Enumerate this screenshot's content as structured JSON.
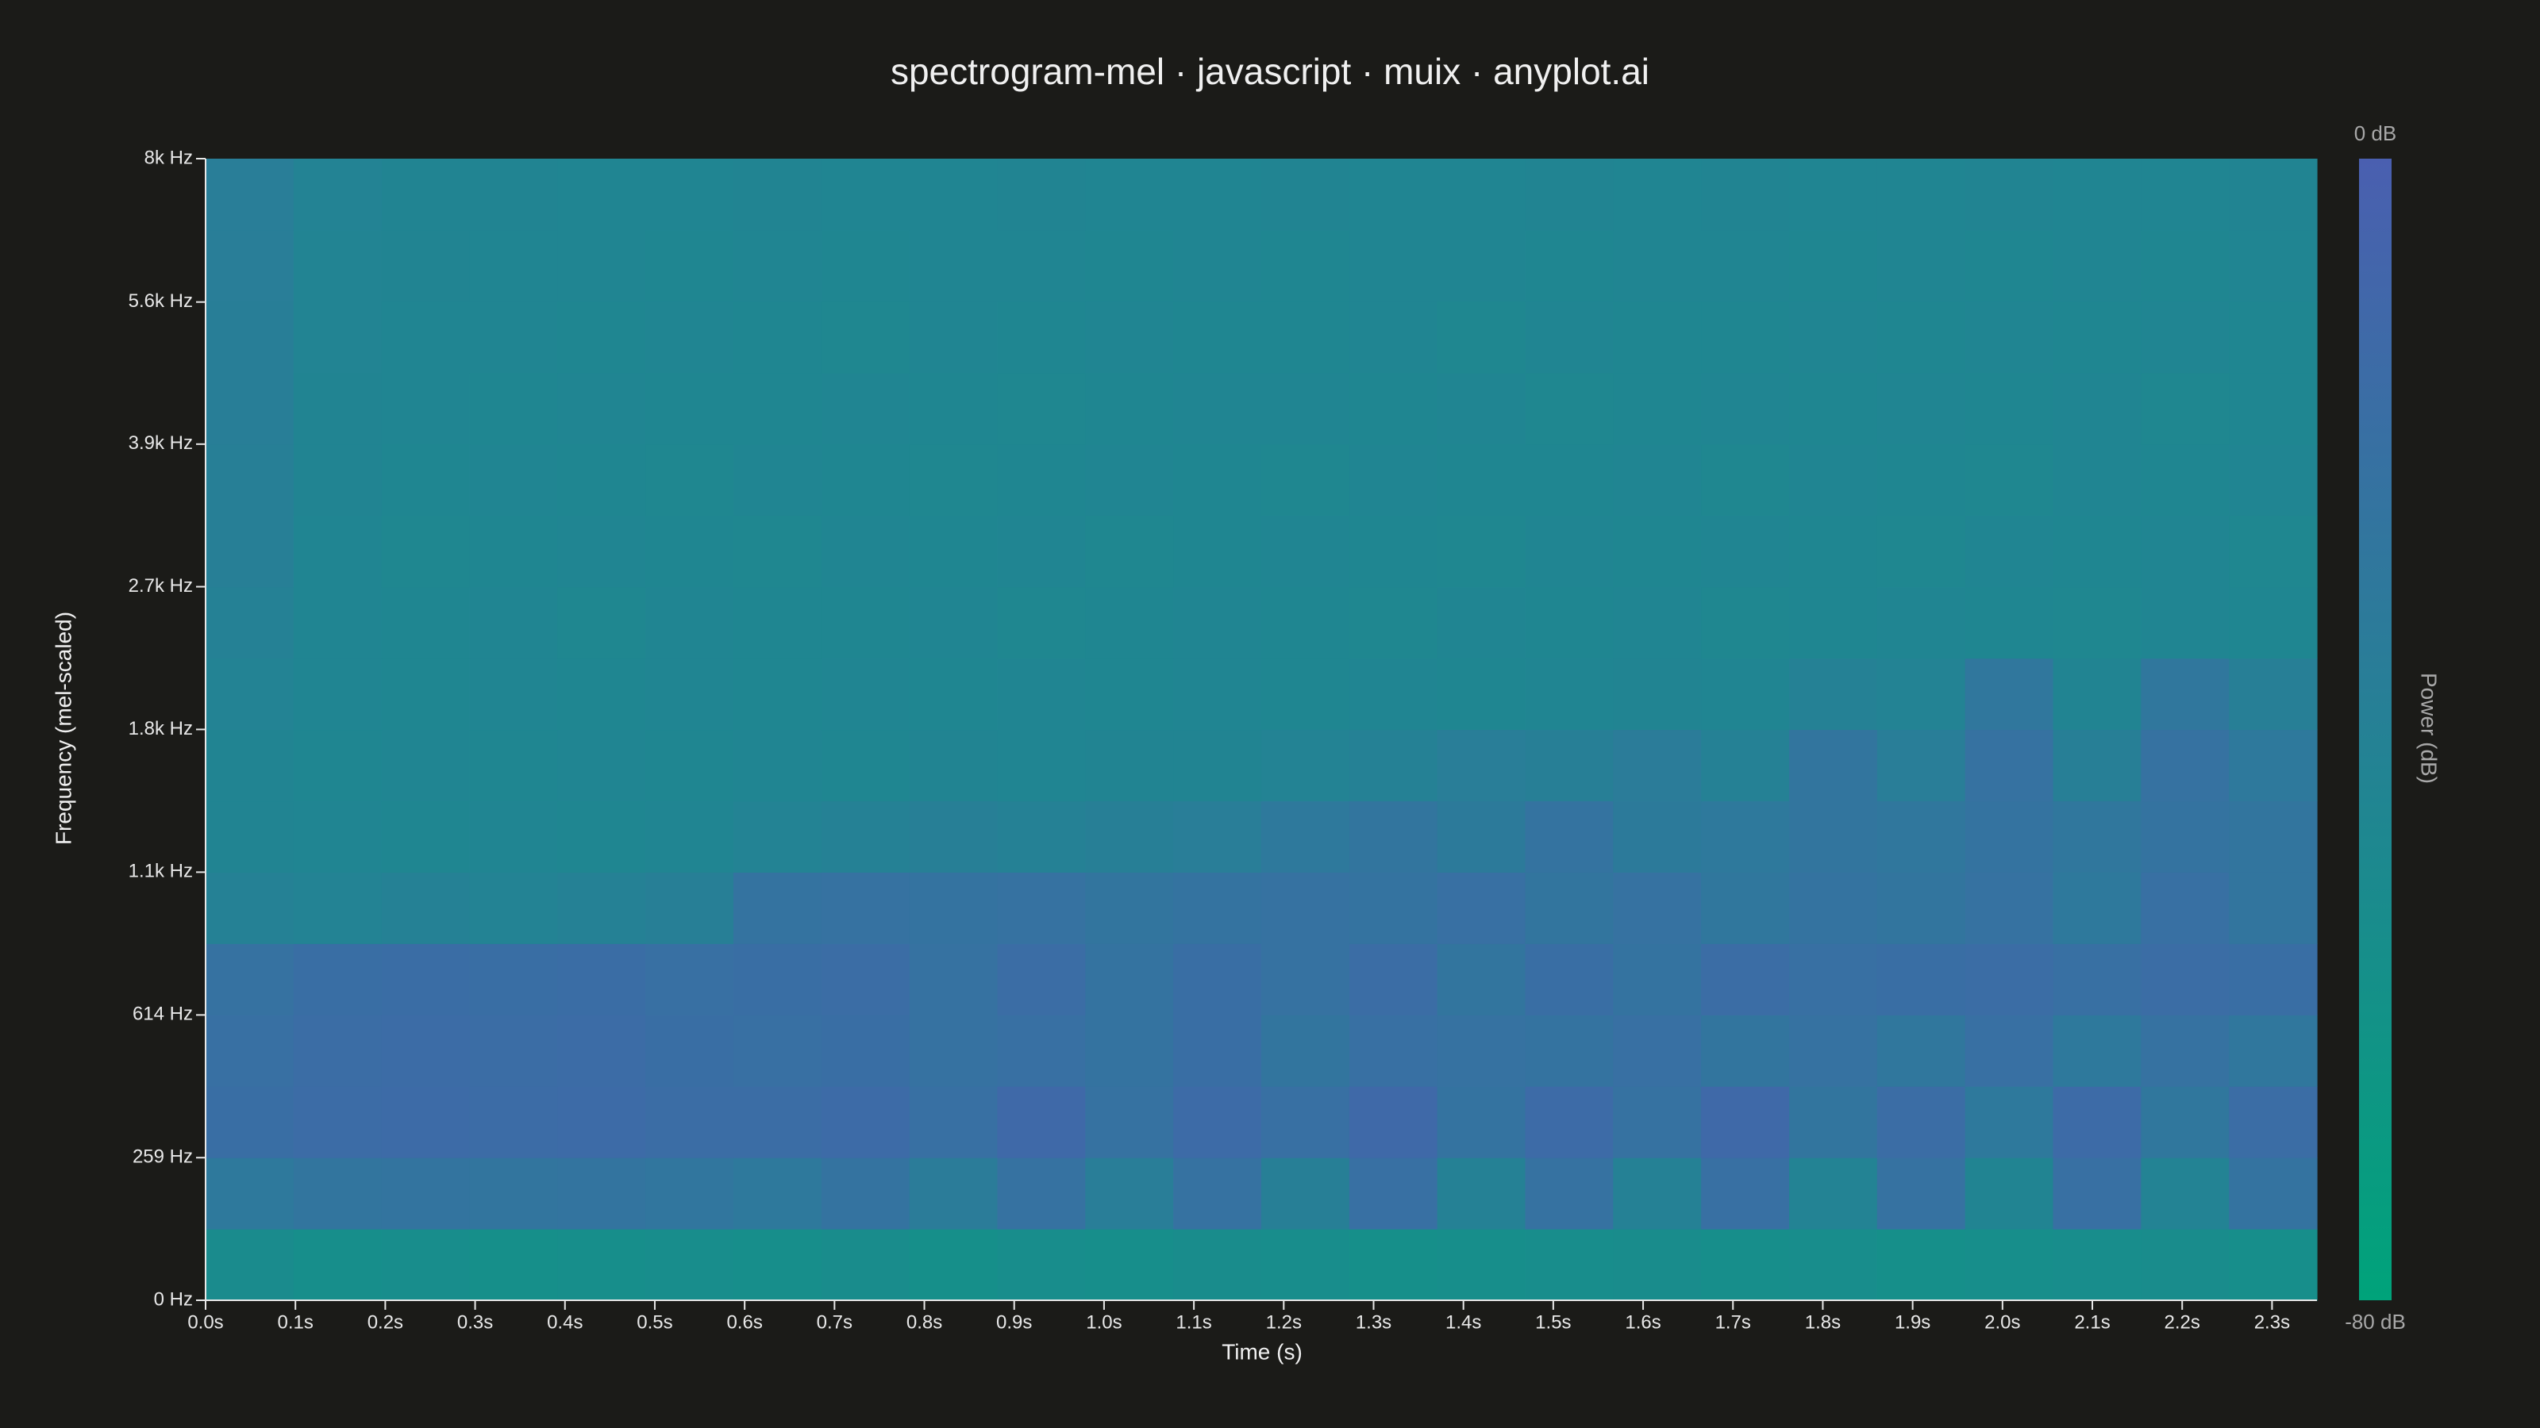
{
  "chart_data": {
    "type": "heatmap",
    "title": "spectrogram-mel · javascript · muix · anyplot.ai",
    "x_label": "Time (s)",
    "y_label": "Frequency (mel-scaled)",
    "colorbar_label": "Power (dB)",
    "y_scale": "mel",
    "xlim": [
      0,
      2.35
    ],
    "ylim": [
      0,
      8000
    ],
    "zlim": [
      -80,
      0
    ],
    "colorscale": [
      "#00a37a",
      "#4a5fb0"
    ],
    "xticks": [
      {
        "value": 0,
        "label": "0.0s"
      },
      {
        "value": 0.1,
        "label": "0.1s"
      },
      {
        "value": 0.2,
        "label": "0.2s"
      },
      {
        "value": 0.3,
        "label": "0.3s"
      },
      {
        "value": 0.4,
        "label": "0.4s"
      },
      {
        "value": 0.5,
        "label": "0.5s"
      },
      {
        "value": 0.6,
        "label": "0.6s"
      },
      {
        "value": 0.7,
        "label": "0.7s"
      },
      {
        "value": 0.8,
        "label": "0.8s"
      },
      {
        "value": 0.9,
        "label": "0.9s"
      },
      {
        "value": 1.0,
        "label": "1.0s"
      },
      {
        "value": 1.1,
        "label": "1.1s"
      },
      {
        "value": 1.2,
        "label": "1.2s"
      },
      {
        "value": 1.3,
        "label": "1.3s"
      },
      {
        "value": 1.4,
        "label": "1.4s"
      },
      {
        "value": 1.5,
        "label": "1.5s"
      },
      {
        "value": 1.6,
        "label": "1.6s"
      },
      {
        "value": 1.7,
        "label": "1.7s"
      },
      {
        "value": 1.8,
        "label": "1.8s"
      },
      {
        "value": 1.9,
        "label": "1.9s"
      },
      {
        "value": 2.0,
        "label": "2.0s"
      },
      {
        "value": 2.1,
        "label": "2.1s"
      },
      {
        "value": 2.2,
        "label": "2.2s"
      },
      {
        "value": 2.3,
        "label": "2.3s"
      }
    ],
    "yticks": [
      {
        "value": 0,
        "label": "0 Hz"
      },
      {
        "value": 259,
        "label": "259 Hz"
      },
      {
        "value": 614,
        "label": "614 Hz"
      },
      {
        "value": 1101,
        "label": "1.1k Hz"
      },
      {
        "value": 1768,
        "label": "1.8k Hz"
      },
      {
        "value": 2682,
        "label": "2.7k Hz"
      },
      {
        "value": 3933,
        "label": "3.9k Hz"
      },
      {
        "value": 5640,
        "label": "5.6k Hz"
      },
      {
        "value": 8000,
        "label": "8k Hz"
      }
    ],
    "zticks": [
      {
        "value": 0,
        "label": "0 dB"
      },
      {
        "value": -80,
        "label": "-80 dB"
      }
    ],
    "z": [
      [
        -52,
        -55,
        -54,
        -56,
        -55,
        -54,
        -55,
        -53,
        -56,
        -54,
        -55,
        -53,
        -54,
        -56,
        -55,
        -54,
        -53,
        -55,
        -54,
        -56,
        -55,
        -54,
        -53,
        -55
      ],
      [
        -30,
        -26,
        -25,
        -26,
        -25,
        -27,
        -30,
        -24,
        -34,
        -22,
        -36,
        -22,
        -38,
        -20,
        -40,
        -22,
        -40,
        -20,
        -42,
        -22,
        -44,
        -20,
        -42,
        -24
      ],
      [
        -18,
        -15,
        -14,
        -15,
        -14,
        -16,
        -16,
        -14,
        -20,
        -12,
        -22,
        -14,
        -20,
        -12,
        -24,
        -14,
        -22,
        -12,
        -26,
        -16,
        -30,
        -14,
        -28,
        -16
      ],
      [
        -20,
        -16,
        -15,
        -16,
        -15,
        -18,
        -20,
        -18,
        -22,
        -20,
        -24,
        -18,
        -26,
        -20,
        -22,
        -24,
        -20,
        -26,
        -22,
        -28,
        -20,
        -30,
        -22,
        -28
      ],
      [
        -22,
        -18,
        -17,
        -18,
        -17,
        -20,
        -18,
        -16,
        -22,
        -16,
        -24,
        -18,
        -22,
        -16,
        -26,
        -18,
        -24,
        -16,
        -20,
        -18,
        -16,
        -20,
        -16,
        -18
      ],
      [
        -40,
        -42,
        -40,
        -42,
        -40,
        -38,
        -24,
        -22,
        -24,
        -22,
        -26,
        -24,
        -22,
        -24,
        -20,
        -26,
        -22,
        -28,
        -24,
        -26,
        -22,
        -30,
        -20,
        -26
      ],
      [
        -44,
        -45,
        -46,
        -45,
        -46,
        -45,
        -42,
        -40,
        -38,
        -40,
        -38,
        -36,
        -30,
        -26,
        -32,
        -24,
        -32,
        -30,
        -26,
        -28,
        -24,
        -28,
        -24,
        -26
      ],
      [
        -44,
        -46,
        -45,
        -46,
        -45,
        -46,
        -45,
        -46,
        -44,
        -45,
        -44,
        -44,
        -42,
        -40,
        -36,
        -38,
        -34,
        -40,
        -26,
        -36,
        -22,
        -38,
        -22,
        -30
      ],
      [
        -42,
        -45,
        -46,
        -45,
        -46,
        -45,
        -46,
        -45,
        -46,
        -45,
        -46,
        -45,
        -46,
        -45,
        -46,
        -45,
        -44,
        -45,
        -40,
        -42,
        -28,
        -44,
        -28,
        -38
      ],
      [
        -40,
        -45,
        -46,
        -45,
        -47,
        -45,
        -46,
        -46,
        -45,
        -47,
        -46,
        -45,
        -46,
        -47,
        -45,
        -46,
        -45,
        -47,
        -46,
        -45,
        -46,
        -47,
        -45,
        -46
      ],
      [
        -38,
        -45,
        -47,
        -46,
        -45,
        -46,
        -47,
        -45,
        -46,
        -45,
        -47,
        -46,
        -45,
        -46,
        -47,
        -45,
        -46,
        -45,
        -46,
        -47,
        -45,
        -46,
        -45,
        -47
      ],
      [
        -38,
        -44,
        -46,
        -45,
        -46,
        -47,
        -45,
        -46,
        -47,
        -46,
        -45,
        -46,
        -47,
        -45,
        -46,
        -46,
        -45,
        -47,
        -45,
        -46,
        -47,
        -45,
        -46,
        -45
      ],
      [
        -37,
        -44,
        -45,
        -46,
        -45,
        -46,
        -46,
        -45,
        -46,
        -47,
        -46,
        -45,
        -45,
        -46,
        -45,
        -47,
        -46,
        -45,
        -46,
        -45,
        -46,
        -45,
        -47,
        -46
      ],
      [
        -37,
        -43,
        -45,
        -45,
        -46,
        -45,
        -46,
        -47,
        -45,
        -46,
        -45,
        -46,
        -46,
        -45,
        -47,
        -45,
        -46,
        -46,
        -45,
        -46,
        -45,
        -46,
        -45,
        -46
      ],
      [
        -36,
        -43,
        -44,
        -45,
        -45,
        -46,
        -45,
        -46,
        -45,
        -45,
        -46,
        -45,
        -46,
        -45,
        -45,
        -46,
        -45,
        -45,
        -46,
        -45,
        -46,
        -45,
        -46,
        -45
      ],
      [
        -36,
        -42,
        -44,
        -44,
        -45,
        -45,
        -44,
        -45,
        -45,
        -44,
        -45,
        -45,
        -44,
        -45,
        -45,
        -44,
        -45,
        -44,
        -45,
        -45,
        -44,
        -45,
        -45,
        -44
      ]
    ]
  }
}
